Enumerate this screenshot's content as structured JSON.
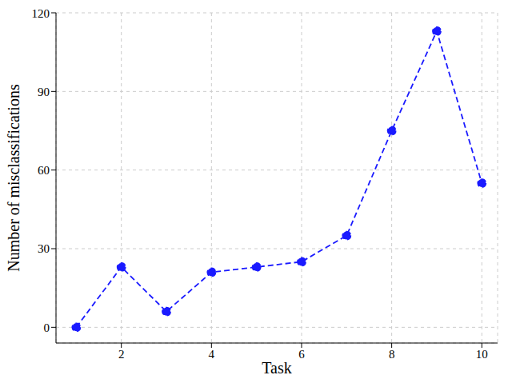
{
  "chart_data": {
    "type": "line",
    "x_label": "Task",
    "y_label": "Number of misclassifications",
    "x": [
      1,
      2,
      3,
      4,
      5,
      6,
      7,
      8,
      9,
      10
    ],
    "values": [
      0,
      23,
      6,
      21,
      23,
      25,
      35,
      75,
      113,
      55
    ],
    "color": "#1a1aff",
    "xlim": [
      0.55,
      10.35
    ],
    "ylim": [
      -6,
      120
    ],
    "xticks": [
      2,
      4,
      6,
      8,
      10
    ],
    "yticks": [
      0,
      30,
      60,
      90,
      120
    ],
    "grid": true,
    "marker": "o",
    "line_style": "dashed"
  }
}
